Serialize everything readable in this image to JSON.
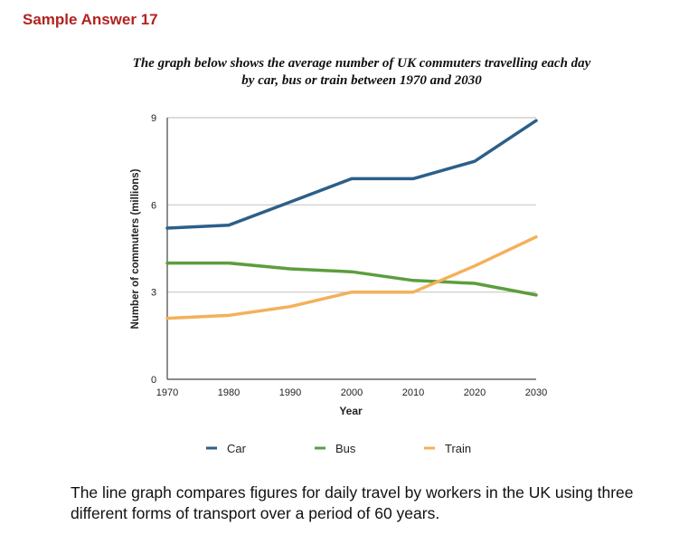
{
  "heading": "Sample Answer 17",
  "chart_data": {
    "type": "line",
    "title_lines": [
      "The graph below shows the average number of UK commuters travelling each day",
      "by car, bus or train between 1970 and 2030"
    ],
    "xlabel": "Year",
    "ylabel": "Number of commuters (millions)",
    "x": [
      1970,
      1980,
      1990,
      2000,
      2010,
      2020,
      2030
    ],
    "x_tick_labels": [
      "1970",
      "1980",
      "1990",
      "2000",
      "2010",
      "2020",
      "2030"
    ],
    "y_ticks": [
      0,
      3,
      6,
      9
    ],
    "y_tick_labels": [
      "0",
      "3",
      "6",
      "9"
    ],
    "ylim": [
      0,
      9
    ],
    "xlim": [
      1970,
      2030
    ],
    "grid": true,
    "legend_position": "bottom",
    "series": [
      {
        "name": "Car",
        "color": "#2c5f8a",
        "values": [
          5.2,
          5.3,
          6.1,
          6.9,
          6.9,
          7.5,
          8.9
        ]
      },
      {
        "name": "Bus",
        "color": "#5c9e3e",
        "values": [
          4.0,
          4.0,
          3.8,
          3.7,
          3.4,
          3.3,
          2.9
        ]
      },
      {
        "name": "Train",
        "color": "#f4b05a",
        "values": [
          2.1,
          2.2,
          2.5,
          3.0,
          3.0,
          3.9,
          4.9
        ]
      }
    ]
  },
  "caption_lines": [
    "The line graph compares figures for daily travel by workers in the UK using three",
    "different forms of transport over a period of 60 years."
  ]
}
